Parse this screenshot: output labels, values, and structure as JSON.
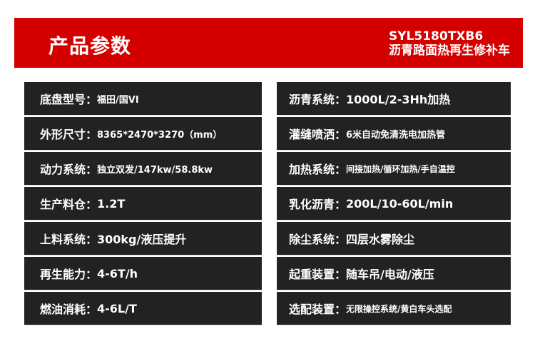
{
  "banner": {
    "title": "产品参数",
    "model": "SYL5180TXB6",
    "product_name": "沥青路面热再生修补车",
    "color": "#d40000"
  },
  "left": [
    {
      "label": "底盘型号：",
      "value": "福田/国VI"
    },
    {
      "label": "外形尺寸：",
      "value": "8365*2470*3270（mm）"
    },
    {
      "label": "动力系统：",
      "value": "独立双发/147kw/58.8kw"
    },
    {
      "label": "生产料仓：",
      "value": "1.2T"
    },
    {
      "label": "上料系统：",
      "value": "300kg/液压提升"
    },
    {
      "label": "再生能力：",
      "value": "4-6T/h"
    },
    {
      "label": "燃油消耗：",
      "value": "4-6L/T"
    }
  ],
  "right": [
    {
      "label": "沥青系统：",
      "value": "1000L/2-3Hh加热"
    },
    {
      "label": "灌缝喷洒：",
      "value": "6米自动免清洗电加热管"
    },
    {
      "label": "加热系统：",
      "value": "间接加热/循环加热/手自温控"
    },
    {
      "label": "乳化沥青：",
      "value": "200L/10-60L/min"
    },
    {
      "label": "除尘系统：",
      "value": "四层水雾除尘"
    },
    {
      "label": "起重装置：",
      "value": "随车吊/电动/液压"
    },
    {
      "label": "选配装置：",
      "value": "无限操控系统/黄白车头选配"
    }
  ]
}
